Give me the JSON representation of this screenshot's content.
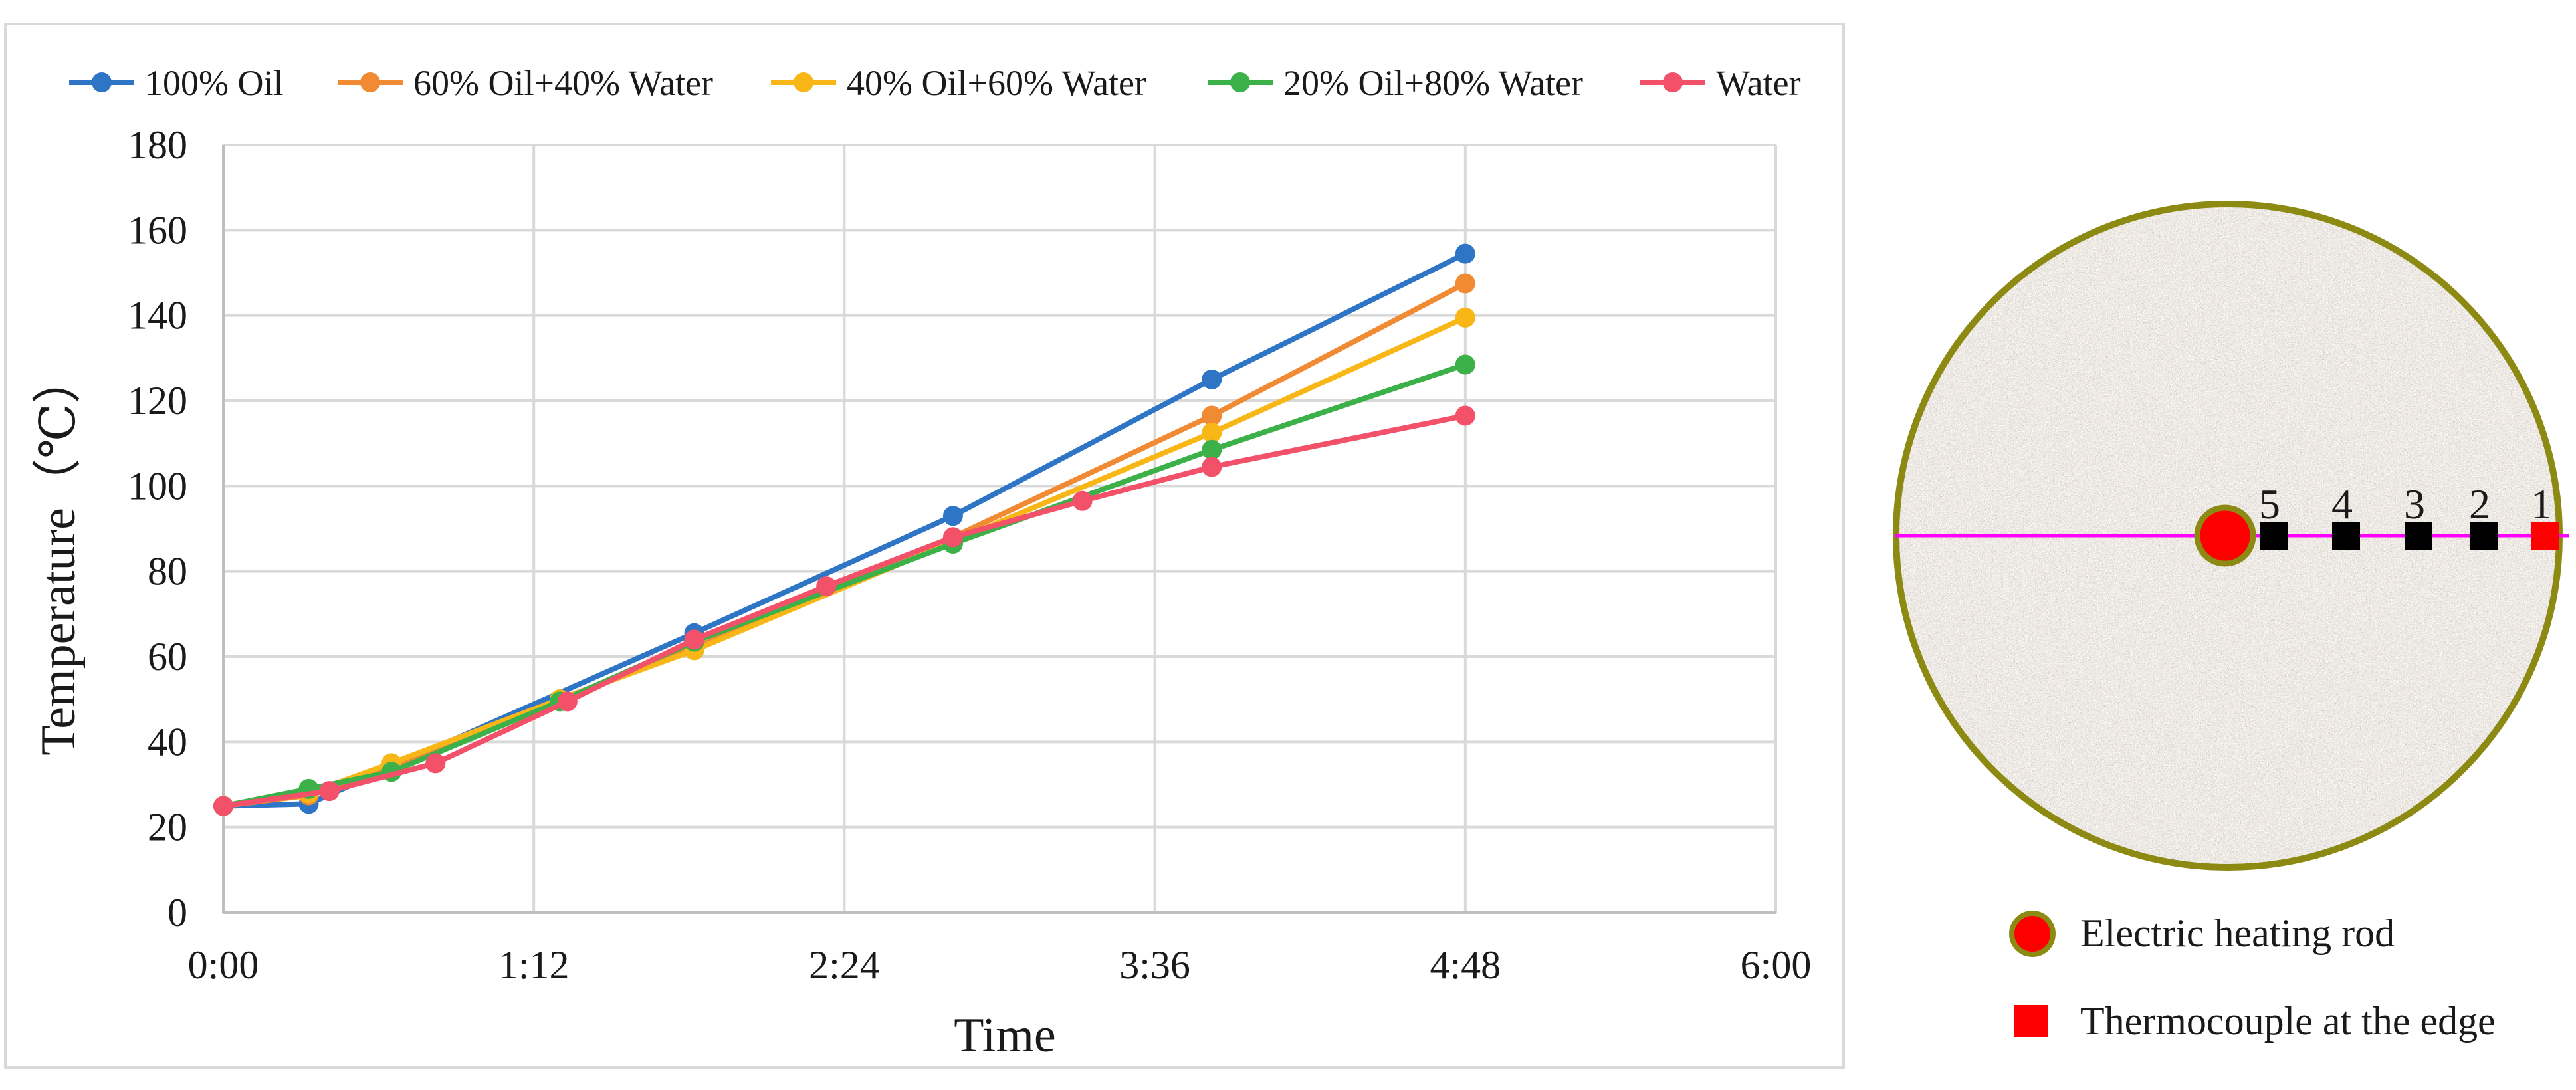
{
  "chart_data": {
    "type": "line",
    "xlabel": "Time",
    "ylabel": "Temperature（℃）",
    "ylim": [
      0,
      180
    ],
    "yticks": [
      0,
      20,
      40,
      60,
      80,
      100,
      120,
      140,
      160,
      180
    ],
    "xlim_minutes": [
      0,
      6
    ],
    "xticks": [
      {
        "value": 0,
        "label": "0:00"
      },
      {
        "value": 1.2,
        "label": "1:12"
      },
      {
        "value": 2.4,
        "label": "2:24"
      },
      {
        "value": 3.6,
        "label": "3:36"
      },
      {
        "value": 4.8,
        "label": "4:48"
      },
      {
        "value": 6.0,
        "label": "6:00"
      }
    ],
    "grid": true,
    "legend_position": "top",
    "series": [
      {
        "name": "100% Oil",
        "color": "#2E75C6",
        "points": [
          [
            0,
            25
          ],
          [
            0.33,
            25.5
          ],
          [
            1.82,
            65.5
          ],
          [
            2.82,
            93
          ],
          [
            3.82,
            125
          ],
          [
            4.8,
            154.5
          ]
        ]
      },
      {
        "name": "60% Oil+40% Water",
        "color": "#F08A33",
        "points": [
          [
            0,
            25
          ],
          [
            0.33,
            27.5
          ],
          [
            0.65,
            34
          ],
          [
            1.3,
            50
          ],
          [
            1.82,
            62
          ],
          [
            2.82,
            88
          ],
          [
            3.82,
            116.5
          ],
          [
            4.8,
            147.5
          ]
        ]
      },
      {
        "name": "40% Oil+60% Water",
        "color": "#F8B716",
        "points": [
          [
            0,
            25
          ],
          [
            0.33,
            28
          ],
          [
            0.65,
            35
          ],
          [
            1.3,
            50
          ],
          [
            1.82,
            61.5
          ],
          [
            2.82,
            87
          ],
          [
            3.82,
            112.5
          ],
          [
            4.8,
            139.5
          ]
        ]
      },
      {
        "name": "20% Oil+80% Water",
        "color": "#3DB149",
        "points": [
          [
            0,
            25
          ],
          [
            0.33,
            29
          ],
          [
            0.65,
            33
          ],
          [
            1.3,
            49.5
          ],
          [
            1.82,
            63.5
          ],
          [
            2.82,
            86.5
          ],
          [
            3.82,
            108.5
          ],
          [
            4.8,
            128.5
          ]
        ]
      },
      {
        "name": "Water",
        "color": "#F35169",
        "points": [
          [
            0,
            25
          ],
          [
            0.41,
            28.5
          ],
          [
            0.82,
            35
          ],
          [
            1.33,
            49.5
          ],
          [
            1.82,
            64
          ],
          [
            2.33,
            76.5
          ],
          [
            2.82,
            88
          ],
          [
            3.32,
            96.5
          ],
          [
            3.82,
            104.5
          ],
          [
            4.8,
            116.5
          ]
        ]
      }
    ]
  },
  "diagram": {
    "thermocouple_labels": [
      "5",
      "4",
      "3",
      "2",
      "1"
    ],
    "rod_color": "#FF0000",
    "rim_color": "#8C8A12",
    "section_line_color": "#FF00FF",
    "legend": {
      "heating_rod": "Electric heating rod",
      "thermocouple_edge": "Thermocouple at the edge"
    }
  }
}
